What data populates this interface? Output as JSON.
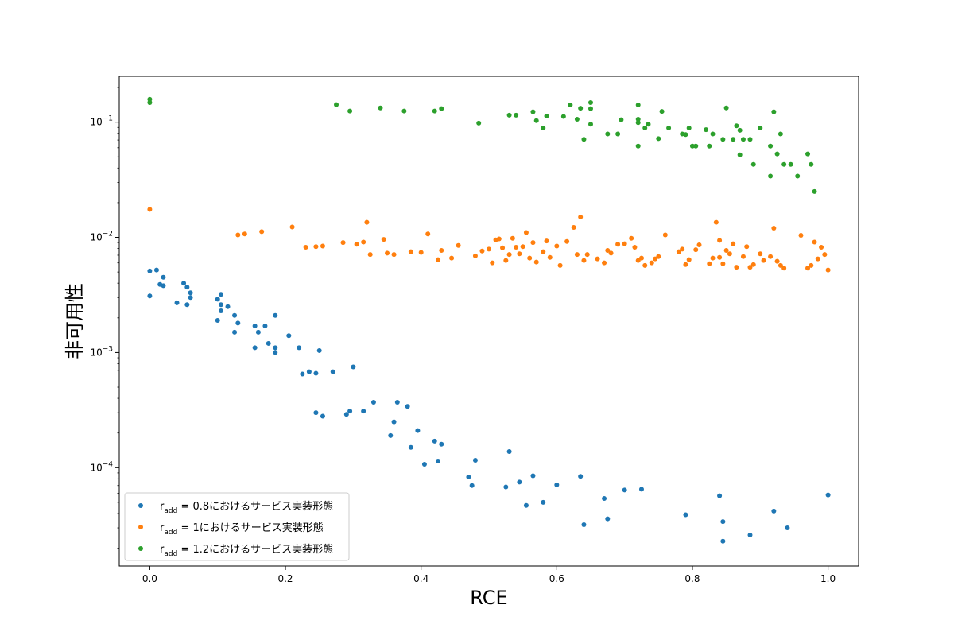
{
  "chart_data": {
    "type": "scatter",
    "title": "",
    "xlabel": "RCE",
    "ylabel": "非可用性",
    "xlim": [
      -0.045,
      1.045
    ],
    "ylim": [
      1.4e-05,
      0.25
    ],
    "yscale": "log",
    "x_ticks": [
      0.0,
      0.2,
      0.4,
      0.6,
      0.8,
      1.0
    ],
    "x_tick_labels": [
      "0.0",
      "0.2",
      "0.4",
      "0.6",
      "0.8",
      "1.0"
    ],
    "y_ticks": [
      0.0001,
      0.001,
      0.01,
      0.1
    ],
    "y_tick_labels": [
      {
        "base": "10",
        "exp": "−4"
      },
      {
        "base": "10",
        "exp": "−3"
      },
      {
        "base": "10",
        "exp": "−2"
      },
      {
        "base": "10",
        "exp": "−1"
      }
    ],
    "grid": false,
    "legend_position": "lower-left",
    "series": [
      {
        "name": "r_add = 0.8におけるサービス実装形態",
        "legend_label": {
          "r": "r",
          "sub": "add",
          "rest": " = 0.8におけるサービス実装形態"
        },
        "color": "#1f77b4",
        "points": [
          [
            0.0,
            0.0051
          ],
          [
            0.0,
            0.0031
          ],
          [
            0.01,
            0.0052
          ],
          [
            0.015,
            0.0039
          ],
          [
            0.02,
            0.0045
          ],
          [
            0.02,
            0.0038
          ],
          [
            0.04,
            0.0027
          ],
          [
            0.05,
            0.004
          ],
          [
            0.055,
            0.0026
          ],
          [
            0.055,
            0.0037
          ],
          [
            0.06,
            0.0033
          ],
          [
            0.06,
            0.003
          ],
          [
            0.1,
            0.0029
          ],
          [
            0.1,
            0.0019
          ],
          [
            0.105,
            0.0026
          ],
          [
            0.105,
            0.0023
          ],
          [
            0.105,
            0.0032
          ],
          [
            0.115,
            0.0025
          ],
          [
            0.125,
            0.0021
          ],
          [
            0.125,
            0.0015
          ],
          [
            0.13,
            0.0018
          ],
          [
            0.155,
            0.0017
          ],
          [
            0.155,
            0.0011
          ],
          [
            0.16,
            0.0015
          ],
          [
            0.17,
            0.0017
          ],
          [
            0.175,
            0.0012
          ],
          [
            0.185,
            0.0021
          ],
          [
            0.185,
            0.0011
          ],
          [
            0.185,
            0.001
          ],
          [
            0.205,
            0.0014
          ],
          [
            0.22,
            0.0011
          ],
          [
            0.225,
            0.00065
          ],
          [
            0.235,
            0.00068
          ],
          [
            0.245,
            0.00066
          ],
          [
            0.25,
            0.00104
          ],
          [
            0.27,
            0.00068
          ],
          [
            0.3,
            0.00075
          ],
          [
            0.245,
            0.0003
          ],
          [
            0.255,
            0.00028
          ],
          [
            0.29,
            0.00029
          ],
          [
            0.295,
            0.00031
          ],
          [
            0.315,
            0.00031
          ],
          [
            0.33,
            0.00037
          ],
          [
            0.355,
            0.00019
          ],
          [
            0.36,
            0.00025
          ],
          [
            0.365,
            0.00037
          ],
          [
            0.38,
            0.00034
          ],
          [
            0.385,
            0.00015
          ],
          [
            0.395,
            0.00021
          ],
          [
            0.405,
            0.000107
          ],
          [
            0.42,
            0.00017
          ],
          [
            0.425,
            0.000114
          ],
          [
            0.43,
            0.00016
          ],
          [
            0.47,
            8.3e-05
          ],
          [
            0.475,
            7e-05
          ],
          [
            0.48,
            0.000116
          ],
          [
            0.525,
            6.8e-05
          ],
          [
            0.53,
            0.000138
          ],
          [
            0.545,
            7.5e-05
          ],
          [
            0.555,
            4.7e-05
          ],
          [
            0.565,
            8.5e-05
          ],
          [
            0.58,
            5e-05
          ],
          [
            0.6,
            7.1e-05
          ],
          [
            0.635,
            8.4e-05
          ],
          [
            0.64,
            3.2e-05
          ],
          [
            0.67,
            5.4e-05
          ],
          [
            0.675,
            3.6e-05
          ],
          [
            0.7,
            6.4e-05
          ],
          [
            0.725,
            6.5e-05
          ],
          [
            0.79,
            3.9e-05
          ],
          [
            0.84,
            5.7e-05
          ],
          [
            0.845,
            3.4e-05
          ],
          [
            0.845,
            2.3e-05
          ],
          [
            0.885,
            2.6e-05
          ],
          [
            0.92,
            4.2e-05
          ],
          [
            0.94,
            3e-05
          ],
          [
            1.0,
            5.8e-05
          ]
        ]
      },
      {
        "name": "r_add = 1におけるサービス実装形態",
        "legend_label": {
          "r": "r",
          "sub": "add",
          "rest": " = 1におけるサービス実装形態"
        },
        "color": "#ff7f0e",
        "points": [
          [
            0.0,
            0.0175
          ],
          [
            0.13,
            0.0105
          ],
          [
            0.14,
            0.0107
          ],
          [
            0.165,
            0.0112
          ],
          [
            0.21,
            0.0123
          ],
          [
            0.23,
            0.0082
          ],
          [
            0.245,
            0.0083
          ],
          [
            0.255,
            0.0084
          ],
          [
            0.285,
            0.009
          ],
          [
            0.305,
            0.0087
          ],
          [
            0.315,
            0.0091
          ],
          [
            0.32,
            0.0135
          ],
          [
            0.325,
            0.0071
          ],
          [
            0.345,
            0.0096
          ],
          [
            0.35,
            0.0073
          ],
          [
            0.36,
            0.0071
          ],
          [
            0.385,
            0.0075
          ],
          [
            0.4,
            0.0074
          ],
          [
            0.41,
            0.0107
          ],
          [
            0.425,
            0.0064
          ],
          [
            0.43,
            0.0077
          ],
          [
            0.445,
            0.0066
          ],
          [
            0.455,
            0.0085
          ],
          [
            0.48,
            0.0069
          ],
          [
            0.49,
            0.0076
          ],
          [
            0.5,
            0.0079
          ],
          [
            0.505,
            0.006
          ],
          [
            0.51,
            0.0095
          ],
          [
            0.515,
            0.0097
          ],
          [
            0.52,
            0.0081
          ],
          [
            0.525,
            0.0063
          ],
          [
            0.53,
            0.0071
          ],
          [
            0.535,
            0.0098
          ],
          [
            0.54,
            0.0082
          ],
          [
            0.545,
            0.0072
          ],
          [
            0.55,
            0.0083
          ],
          [
            0.555,
            0.011
          ],
          [
            0.56,
            0.0066
          ],
          [
            0.565,
            0.009
          ],
          [
            0.57,
            0.0061
          ],
          [
            0.58,
            0.0075
          ],
          [
            0.585,
            0.0093
          ],
          [
            0.59,
            0.0067
          ],
          [
            0.6,
            0.0084
          ],
          [
            0.605,
            0.0057
          ],
          [
            0.615,
            0.0092
          ],
          [
            0.625,
            0.0122
          ],
          [
            0.63,
            0.0071
          ],
          [
            0.635,
            0.015
          ],
          [
            0.64,
            0.0063
          ],
          [
            0.645,
            0.0071
          ],
          [
            0.66,
            0.0065
          ],
          [
            0.67,
            0.006
          ],
          [
            0.675,
            0.0077
          ],
          [
            0.68,
            0.0073
          ],
          [
            0.69,
            0.0087
          ],
          [
            0.7,
            0.0088
          ],
          [
            0.71,
            0.0098
          ],
          [
            0.715,
            0.0082
          ],
          [
            0.72,
            0.0063
          ],
          [
            0.725,
            0.0066
          ],
          [
            0.73,
            0.0057
          ],
          [
            0.74,
            0.006
          ],
          [
            0.745,
            0.0065
          ],
          [
            0.75,
            0.0068
          ],
          [
            0.76,
            0.0105
          ],
          [
            0.78,
            0.0075
          ],
          [
            0.785,
            0.0079
          ],
          [
            0.79,
            0.0058
          ],
          [
            0.795,
            0.0064
          ],
          [
            0.805,
            0.0078
          ],
          [
            0.81,
            0.0086
          ],
          [
            0.825,
            0.0059
          ],
          [
            0.83,
            0.0066
          ],
          [
            0.84,
            0.0067
          ],
          [
            0.835,
            0.0135
          ],
          [
            0.84,
            0.0094
          ],
          [
            0.845,
            0.0059
          ],
          [
            0.85,
            0.0077
          ],
          [
            0.855,
            0.0072
          ],
          [
            0.86,
            0.0088
          ],
          [
            0.865,
            0.0055
          ],
          [
            0.875,
            0.0068
          ],
          [
            0.88,
            0.0083
          ],
          [
            0.885,
            0.0055
          ],
          [
            0.89,
            0.0058
          ],
          [
            0.9,
            0.0072
          ],
          [
            0.905,
            0.0063
          ],
          [
            0.915,
            0.0068
          ],
          [
            0.92,
            0.012
          ],
          [
            0.925,
            0.0062
          ],
          [
            0.93,
            0.0057
          ],
          [
            0.935,
            0.0054
          ],
          [
            0.96,
            0.0104
          ],
          [
            0.97,
            0.0054
          ],
          [
            0.975,
            0.0057
          ],
          [
            0.98,
            0.0091
          ],
          [
            0.985,
            0.0065
          ],
          [
            0.99,
            0.0082
          ],
          [
            0.995,
            0.0071
          ],
          [
            1.0,
            0.0052
          ]
        ]
      },
      {
        "name": "r_add = 1.2におけるサービス実装形態",
        "legend_label": {
          "r": "r",
          "sub": "add",
          "rest": " = 1.2におけるサービス実装形態"
        },
        "color": "#2ca02c",
        "points": [
          [
            0.0,
            0.158
          ],
          [
            0.0,
            0.148
          ],
          [
            0.275,
            0.142
          ],
          [
            0.295,
            0.125
          ],
          [
            0.34,
            0.133
          ],
          [
            0.375,
            0.125
          ],
          [
            0.42,
            0.125
          ],
          [
            0.43,
            0.131
          ],
          [
            0.485,
            0.098
          ],
          [
            0.53,
            0.115
          ],
          [
            0.54,
            0.115
          ],
          [
            0.565,
            0.123
          ],
          [
            0.57,
            0.103
          ],
          [
            0.58,
            0.089
          ],
          [
            0.585,
            0.113
          ],
          [
            0.61,
            0.112
          ],
          [
            0.62,
            0.141
          ],
          [
            0.63,
            0.106
          ],
          [
            0.635,
            0.132
          ],
          [
            0.64,
            0.071
          ],
          [
            0.65,
            0.148
          ],
          [
            0.65,
            0.131
          ],
          [
            0.65,
            0.096
          ],
          [
            0.675,
            0.079
          ],
          [
            0.69,
            0.079
          ],
          [
            0.695,
            0.105
          ],
          [
            0.72,
            0.141
          ],
          [
            0.72,
            0.106
          ],
          [
            0.72,
            0.099
          ],
          [
            0.72,
            0.062
          ],
          [
            0.73,
            0.089
          ],
          [
            0.735,
            0.096
          ],
          [
            0.75,
            0.072
          ],
          [
            0.755,
            0.124
          ],
          [
            0.765,
            0.089
          ],
          [
            0.785,
            0.079
          ],
          [
            0.79,
            0.078
          ],
          [
            0.795,
            0.089
          ],
          [
            0.8,
            0.062
          ],
          [
            0.805,
            0.062
          ],
          [
            0.82,
            0.086
          ],
          [
            0.825,
            0.062
          ],
          [
            0.83,
            0.079
          ],
          [
            0.845,
            0.071
          ],
          [
            0.85,
            0.133
          ],
          [
            0.86,
            0.071
          ],
          [
            0.865,
            0.093
          ],
          [
            0.87,
            0.052
          ],
          [
            0.87,
            0.085
          ],
          [
            0.875,
            0.071
          ],
          [
            0.885,
            0.071
          ],
          [
            0.89,
            0.043
          ],
          [
            0.9,
            0.089
          ],
          [
            0.915,
            0.062
          ],
          [
            0.915,
            0.034
          ],
          [
            0.92,
            0.123
          ],
          [
            0.925,
            0.053
          ],
          [
            0.93,
            0.079
          ],
          [
            0.935,
            0.043
          ],
          [
            0.945,
            0.043
          ],
          [
            0.955,
            0.034
          ],
          [
            0.97,
            0.053
          ],
          [
            0.975,
            0.043
          ],
          [
            0.98,
            0.025
          ]
        ]
      }
    ]
  }
}
